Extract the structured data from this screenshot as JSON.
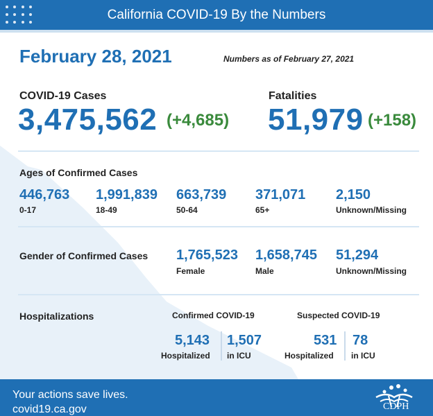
{
  "header": {
    "title": "California COVID-19 By the Numbers"
  },
  "date": "February 28, 2021",
  "as_of": "Numbers as of February 27, 2021",
  "cases": {
    "label": "COVID-19 Cases",
    "total": "3,475,562",
    "delta": "(+4,685)"
  },
  "fatalities": {
    "label": "Fatalities",
    "total": "51,979",
    "delta": "(+158)"
  },
  "ages": {
    "heading": "Ages of Confirmed Cases",
    "groups": [
      {
        "value": "446,763",
        "label": "0-17"
      },
      {
        "value": "1,991,839",
        "label": "18-49"
      },
      {
        "value": "663,739",
        "label": "50-64"
      },
      {
        "value": "371,071",
        "label": "65+"
      },
      {
        "value": "2,150",
        "label": "Unknown/Missing"
      }
    ]
  },
  "gender": {
    "heading": "Gender of Confirmed Cases",
    "groups": [
      {
        "value": "1,765,523",
        "label": "Female"
      },
      {
        "value": "1,658,745",
        "label": "Male"
      },
      {
        "value": "51,294",
        "label": "Unknown/Missing"
      }
    ]
  },
  "hospitalizations": {
    "heading": "Hospitalizations",
    "confirmed": {
      "heading": "Confirmed COVID-19",
      "hospitalized": "5,143",
      "hospitalized_label": "Hospitalized",
      "icu": "1,507",
      "icu_label": "in ICU"
    },
    "suspected": {
      "heading": "Suspected COVID-19",
      "hospitalized": "531",
      "hospitalized_label": "Hospitalized",
      "icu": "78",
      "icu_label": "in ICU"
    }
  },
  "footer": {
    "tagline": "Your actions save lives.",
    "url": "covid19.ca.gov",
    "logo_text": "CDPH"
  },
  "colors": {
    "brand_blue": "#1f6fb4",
    "delta_green": "#3a8a3c",
    "map_tint": "#e8f1f9"
  }
}
